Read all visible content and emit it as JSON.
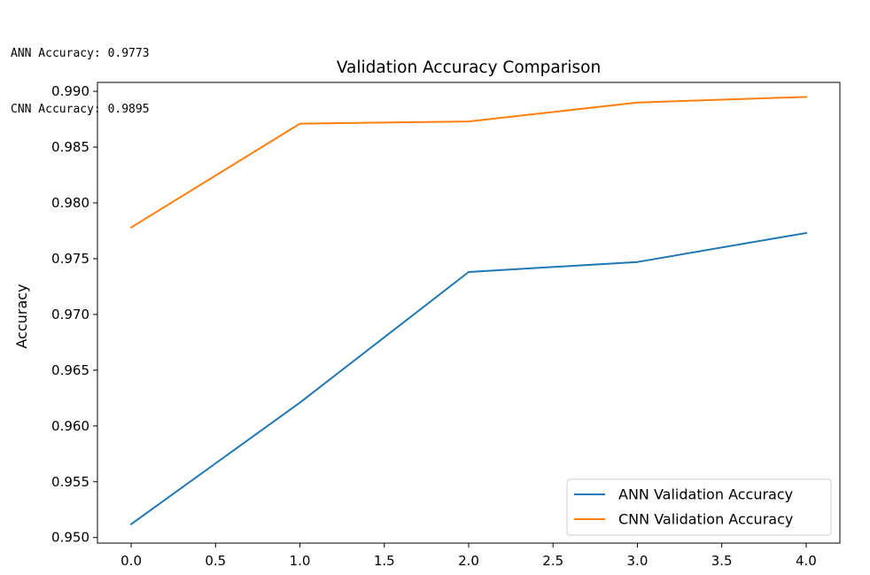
{
  "output": {
    "lines": [
      "ANN Accuracy: 0.9773",
      "CNN Accuracy: 0.9895"
    ]
  },
  "chart_data": {
    "type": "line",
    "title": "Validation Accuracy Comparison",
    "xlabel": "",
    "ylabel": "Accuracy",
    "xlim": [
      -0.2,
      4.2
    ],
    "ylim": [
      0.9495,
      0.9908
    ],
    "xticks": [
      0.0,
      0.5,
      1.0,
      1.5,
      2.0,
      2.5,
      3.0,
      3.5,
      4.0
    ],
    "xtick_labels": [
      "0.0",
      "0.5",
      "1.0",
      "1.5",
      "2.0",
      "2.5",
      "3.0",
      "3.5",
      "4.0"
    ],
    "yticks": [
      0.95,
      0.955,
      0.96,
      0.965,
      0.97,
      0.975,
      0.98,
      0.985,
      0.99
    ],
    "ytick_labels": [
      "0.950",
      "0.955",
      "0.960",
      "0.965",
      "0.970",
      "0.975",
      "0.980",
      "0.985",
      "0.990"
    ],
    "x": [
      0,
      1,
      2,
      3,
      4
    ],
    "series": [
      {
        "name": "ANN Validation Accuracy",
        "color": "#1f77b4",
        "values": [
          0.9512,
          0.9621,
          0.9738,
          0.9747,
          0.9773
        ]
      },
      {
        "name": "CNN Validation Accuracy",
        "color": "#ff7f0e",
        "values": [
          0.9778,
          0.9871,
          0.9873,
          0.989,
          0.9895
        ]
      }
    ],
    "grid": false,
    "legend_position": "lower right"
  }
}
